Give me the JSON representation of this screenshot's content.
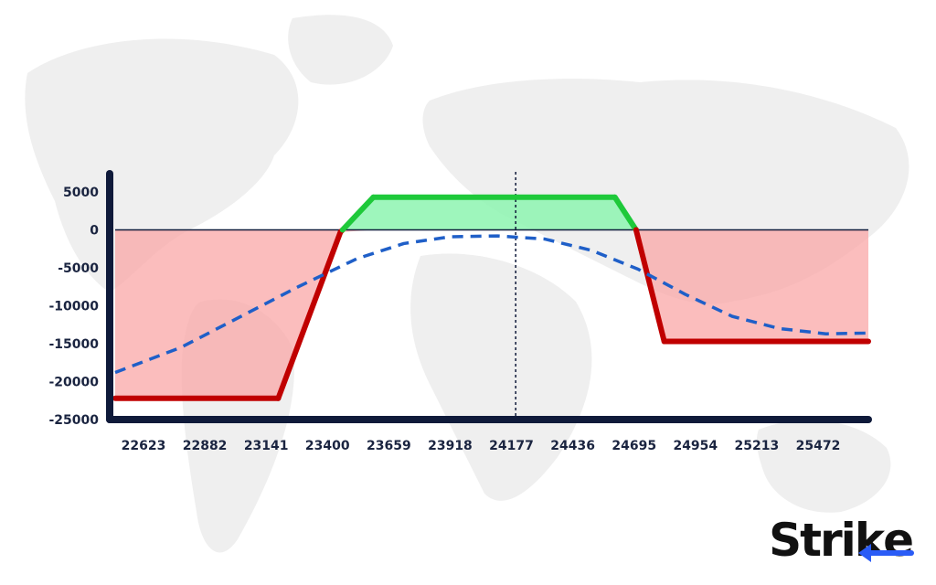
{
  "chart_data": {
    "type": "line",
    "title": "",
    "xlabel": "",
    "ylabel": "",
    "x_ticks": [
      "22623",
      "22882",
      "23141",
      "23400",
      "23659",
      "23918",
      "24177",
      "24436",
      "24695",
      "24954",
      "25213",
      "25472"
    ],
    "y_ticks": [
      "5000",
      "0",
      "-5000",
      "-10000",
      "-15000",
      "-20000",
      "-25000"
    ],
    "xlim": [
      22470,
      25680
    ],
    "ylim": [
      -25000,
      5000
    ],
    "grid": false,
    "marker_x": 24177,
    "series": [
      {
        "style": "solid",
        "color": "#c00000",
        "points": [
          [
            22470,
            -22200
          ],
          [
            23165,
            -22200
          ],
          [
            23430,
            -300
          ],
          [
            23570,
            4300
          ],
          [
            24600,
            4300
          ],
          [
            24690,
            0
          ],
          [
            24810,
            -14700
          ],
          [
            25680,
            -14700
          ]
        ]
      },
      {
        "style": "dashed",
        "color": "#1f5fc8",
        "points": [
          [
            22470,
            -18800
          ],
          [
            22750,
            -15500
          ],
          [
            23000,
            -11500
          ],
          [
            23250,
            -7500
          ],
          [
            23500,
            -3800
          ],
          [
            23700,
            -1800
          ],
          [
            23900,
            -900
          ],
          [
            24100,
            -800
          ],
          [
            24300,
            -1200
          ],
          [
            24500,
            -2700
          ],
          [
            24700,
            -5200
          ],
          [
            24900,
            -8500
          ],
          [
            25100,
            -11400
          ],
          [
            25300,
            -13000
          ],
          [
            25500,
            -13700
          ],
          [
            25680,
            -13600
          ]
        ]
      }
    ],
    "profit_fill_color": "#8df5b0",
    "loss_fill_color": "#f9a7a7"
  },
  "brand": {
    "name_part": "Stri",
    "name_k": "k",
    "name_end": "e",
    "accent": "#2a5cf6"
  }
}
